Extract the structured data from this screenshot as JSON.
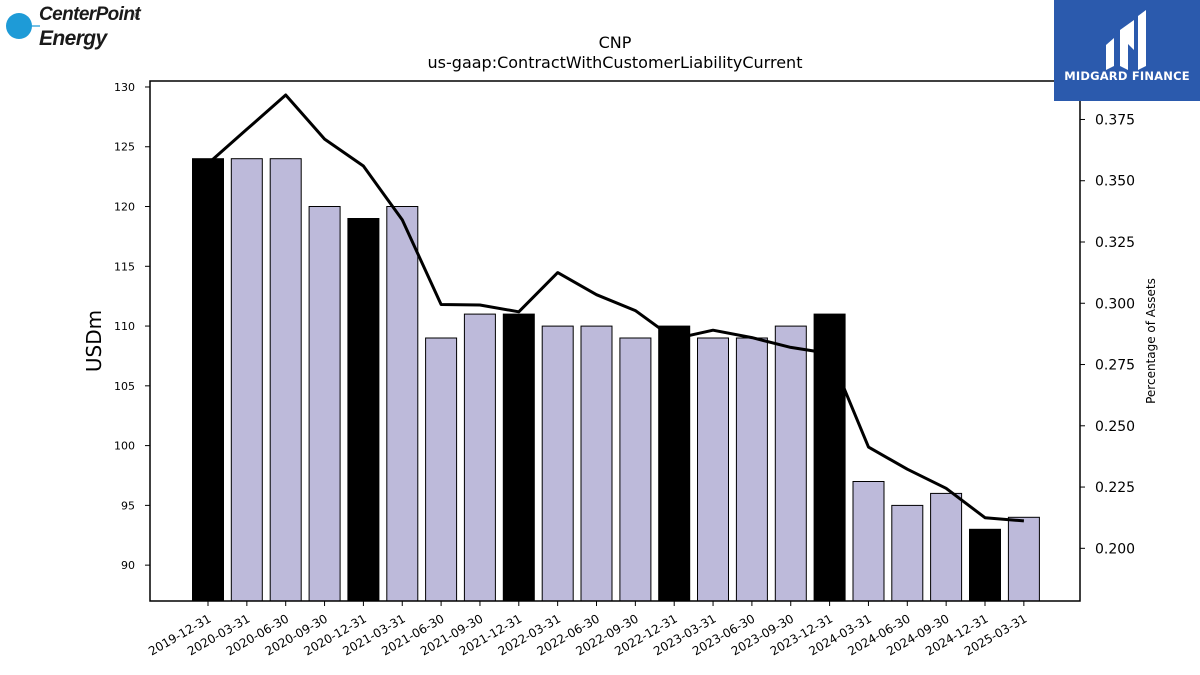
{
  "header": {
    "ticker": "CNP",
    "metric": "us-gaap:ContractWithCustomerLiabilityCurrent"
  },
  "logos": {
    "left": {
      "line1": "CenterPoint",
      "line2": "Energy",
      "reg": "®"
    },
    "right": {
      "text": "MIDGARD FINANCE"
    }
  },
  "chart_data": {
    "type": "bar",
    "title": "CNP",
    "subtitle": "us-gaap:ContractWithCustomerLiabilityCurrent",
    "ylabel": "USDm",
    "y2label": "Percentage of Assets",
    "ylim": [
      87,
      130.5
    ],
    "y2lim": [
      0.1785,
      0.3907
    ],
    "yticks": [
      90,
      95,
      100,
      105,
      110,
      115,
      120,
      125,
      130
    ],
    "y2ticks": [
      "0.200",
      "0.225",
      "0.250",
      "0.275",
      "0.300",
      "0.325",
      "0.350",
      "0.375"
    ],
    "categories": [
      "2019-12-31",
      "2020-03-31",
      "2020-06-30",
      "2020-09-30",
      "2020-12-31",
      "2021-03-31",
      "2021-06-30",
      "2021-09-30",
      "2021-12-31",
      "2022-03-31",
      "2022-06-30",
      "2022-09-30",
      "2022-12-31",
      "2023-03-31",
      "2023-06-30",
      "2023-09-30",
      "2023-12-31",
      "2024-03-31",
      "2024-06-30",
      "2024-09-30",
      "2024-12-31",
      "2025-03-31"
    ],
    "values": [
      124,
      124,
      124,
      120,
      119,
      120,
      109,
      111,
      111,
      110,
      110,
      109,
      110,
      109,
      109,
      110,
      111,
      97,
      95,
      96,
      93,
      94
    ],
    "year_end": [
      true,
      false,
      false,
      false,
      true,
      false,
      false,
      false,
      true,
      false,
      false,
      false,
      true,
      false,
      false,
      false,
      true,
      false,
      false,
      false,
      true,
      false
    ],
    "percent_of_assets": [
      0.357,
      0.371,
      0.385,
      0.367,
      0.356,
      0.334,
      0.2995,
      0.2993,
      0.2965,
      0.3125,
      0.3035,
      0.297,
      0.2855,
      0.289,
      0.286,
      0.282,
      0.2795,
      0.2413,
      0.2323,
      0.2245,
      0.2125,
      0.2112
    ],
    "colors": {
      "year_end_bar": "#000000",
      "quarter_bar": "#bdbada",
      "line": "#000000"
    },
    "grid": false,
    "legend": "none"
  }
}
